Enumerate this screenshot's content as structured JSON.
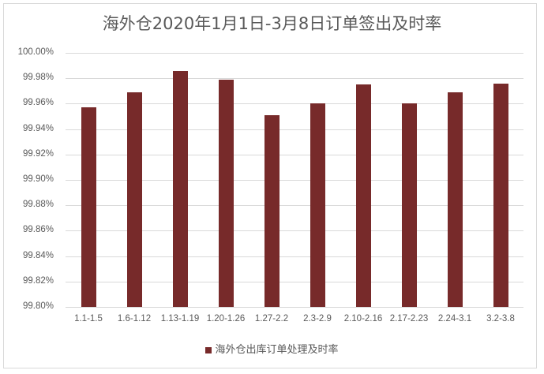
{
  "chart_data": {
    "type": "bar",
    "title": "海外仓2020年1月1日-3月8日订单签出及时率",
    "xlabel": "",
    "ylabel": "",
    "ylim": [
      99.8,
      100.0
    ],
    "yticks": [
      "100.00%",
      "99.98%",
      "99.96%",
      "99.94%",
      "99.92%",
      "99.90%",
      "99.88%",
      "99.86%",
      "99.84%",
      "99.82%",
      "99.80%"
    ],
    "grid": true,
    "legend_position": "bottom",
    "categories": [
      "1.1-1.5",
      "1.6-1.12",
      "1.13-1.19",
      "1.20-1.26",
      "1.27-2.2",
      "2.3-2.9",
      "2.10-2.16",
      "2.17-2.23",
      "2.24-3.1",
      "3.2-3.8"
    ],
    "series": [
      {
        "name": "海外仓出库订单处理及时率",
        "color": "#772a2a",
        "values": [
          99.957,
          99.969,
          99.986,
          99.979,
          99.951,
          99.96,
          99.975,
          99.96,
          99.969,
          99.976
        ]
      }
    ]
  },
  "legend": {
    "label": "海外仓出库订单处理及时率"
  }
}
